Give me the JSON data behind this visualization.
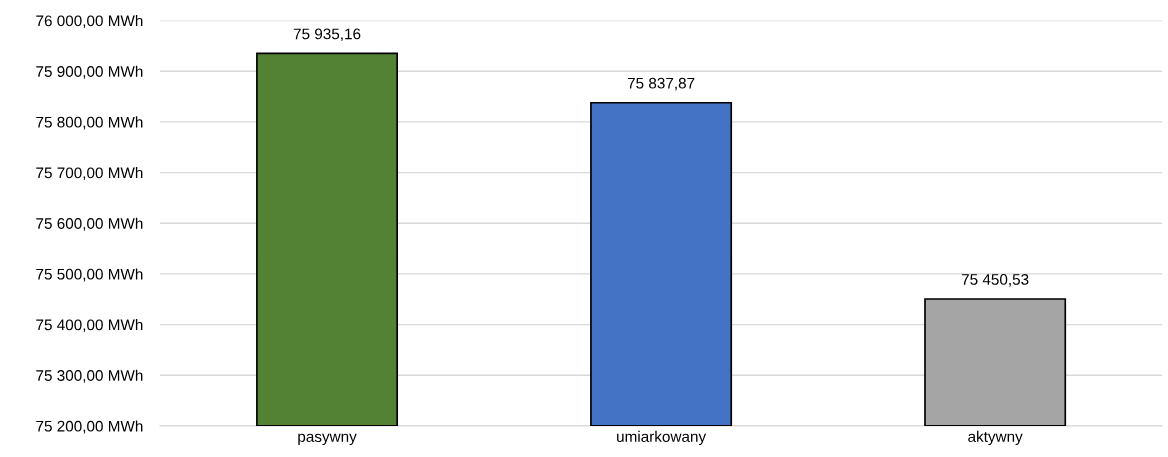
{
  "chart_data": {
    "type": "bar",
    "categories": [
      "pasywny",
      "umiarkowany",
      "aktywny"
    ],
    "values": [
      75935.16,
      75837.87,
      75450.53
    ],
    "colors": [
      "#548235",
      "#4472c4",
      "#a5a5a5"
    ],
    "value_labels": [
      "75 935,16",
      "75 837,87",
      "75 450,53"
    ],
    "ylim": [
      75200,
      76000
    ],
    "yticks": [
      {
        "value": 75200,
        "label": "75 200,00 MWh"
      },
      {
        "value": 75300,
        "label": "75 300,00 MWh"
      },
      {
        "value": 75400,
        "label": "75 400,00 MWh"
      },
      {
        "value": 75500,
        "label": "75 500,00 MWh"
      },
      {
        "value": 75600,
        "label": "75 600,00 MWh"
      },
      {
        "value": 75700,
        "label": "75 700,00 MWh"
      },
      {
        "value": 75800,
        "label": "75 800,00 MWh"
      },
      {
        "value": 75900,
        "label": "75 900,00 MWh"
      },
      {
        "value": 76000,
        "label": "76 000,00 MWh"
      }
    ],
    "grid": "y",
    "legend": false
  }
}
